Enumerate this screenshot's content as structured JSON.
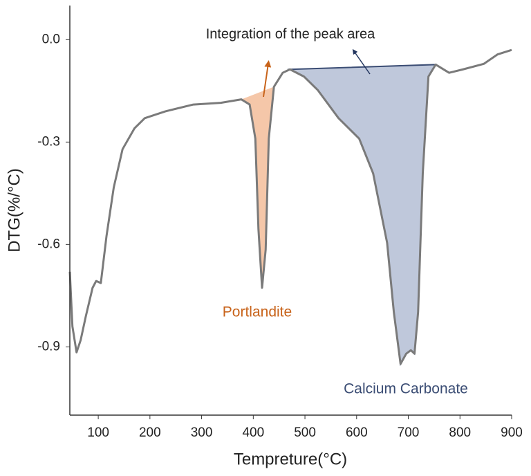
{
  "chart_data": {
    "type": "line",
    "xlabel": "Tempreture(°C)",
    "ylabel": "DTG(%/°C)",
    "annotation": "Integration of the peak area",
    "xlim": [
      45,
      900
    ],
    "ylim": [
      -1.1,
      0.1
    ],
    "xticks": [
      100,
      200,
      300,
      400,
      500,
      600,
      700,
      800,
      900
    ],
    "yticks": [
      {
        "value": 0,
        "label": "0.0"
      },
      -0.3,
      -0.6,
      -0.9
    ],
    "color": "#7a7a7a",
    "x": [
      45,
      50,
      58,
      66,
      76,
      89,
      96,
      105,
      116,
      130,
      147,
      170,
      190,
      230,
      284,
      337,
      377,
      393,
      404,
      410,
      417,
      424,
      430,
      440,
      457,
      471,
      498,
      525,
      565,
      605,
      632,
      659,
      672,
      685,
      696,
      705,
      712,
      719,
      728,
      739,
      753,
      779,
      806,
      846,
      873,
      900
    ],
    "values": [
      -0.68,
      -0.84,
      -0.916,
      -0.88,
      -0.81,
      -0.727,
      -0.707,
      -0.713,
      -0.575,
      -0.433,
      -0.321,
      -0.26,
      -0.23,
      -0.21,
      -0.19,
      -0.185,
      -0.175,
      -0.19,
      -0.29,
      -0.555,
      -0.727,
      -0.615,
      -0.29,
      -0.138,
      -0.097,
      -0.087,
      -0.108,
      -0.148,
      -0.23,
      -0.29,
      -0.392,
      -0.595,
      -0.798,
      -0.95,
      -0.92,
      -0.91,
      -0.92,
      -0.798,
      -0.392,
      -0.108,
      -0.073,
      -0.097,
      -0.087,
      -0.071,
      -0.043,
      -0.03
    ],
    "shaded": [
      {
        "name": "Portlandite",
        "color": "#f2b48c",
        "x_range": [
          377,
          440
        ]
      },
      {
        "name": "Calcium Carbonate",
        "color": "#a9b6cf",
        "x_range": [
          471,
          753
        ]
      }
    ]
  }
}
